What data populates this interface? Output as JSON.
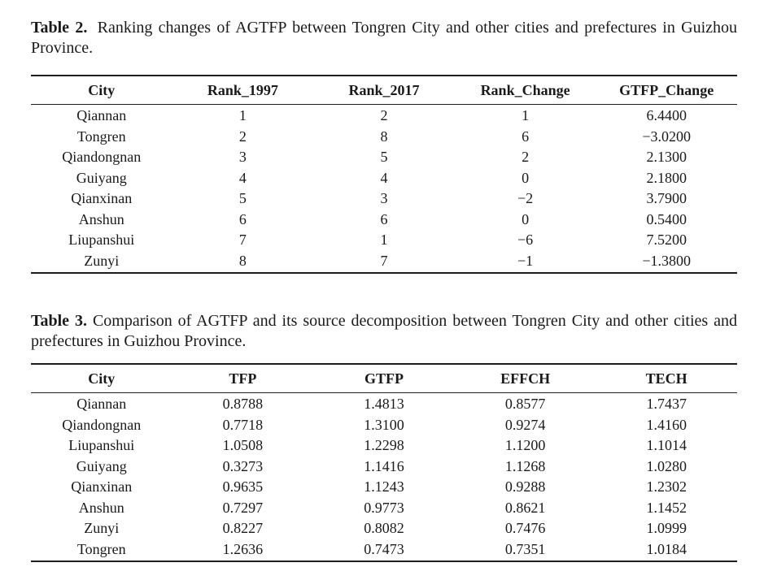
{
  "colors": {
    "text": "#1a1a1a",
    "rule": "#1c1c1c",
    "bg": "#ffffff"
  },
  "tables": [
    {
      "caption_label": "Table 2.",
      "caption_text": "Ranking changes of AGTFP between Tongren City and other cities and prefectures in Guizhou Province.",
      "columns": [
        "City",
        "Rank_1997",
        "Rank_2017",
        "Rank_Change",
        "GTFP_Change"
      ],
      "rows": [
        [
          "Qiannan",
          "1",
          "2",
          "1",
          "6.4400"
        ],
        [
          "Tongren",
          "2",
          "8",
          "6",
          "−3.0200"
        ],
        [
          "Qiandongnan",
          "3",
          "5",
          "2",
          "2.1300"
        ],
        [
          "Guiyang",
          "4",
          "4",
          "0",
          "2.1800"
        ],
        [
          "Qianxinan",
          "5",
          "3",
          "−2",
          "3.7900"
        ],
        [
          "Anshun",
          "6",
          "6",
          "0",
          "0.5400"
        ],
        [
          "Liupanshui",
          "7",
          "1",
          "−6",
          "7.5200"
        ],
        [
          "Zunyi",
          "8",
          "7",
          "−1",
          "−1.3800"
        ]
      ]
    },
    {
      "caption_label": "Table 3.",
      "caption_text": "Comparison of AGTFP and its source decomposition between Tongren City and other cities and prefectures in Guizhou Province.",
      "columns": [
        "City",
        "TFP",
        "GTFP",
        "EFFCH",
        "TECH"
      ],
      "rows": [
        [
          "Qiannan",
          "0.8788",
          "1.4813",
          "0.8577",
          "1.7437"
        ],
        [
          "Qiandongnan",
          "0.7718",
          "1.3100",
          "0.9274",
          "1.4160"
        ],
        [
          "Liupanshui",
          "1.0508",
          "1.2298",
          "1.1200",
          "1.1014"
        ],
        [
          "Guiyang",
          "0.3273",
          "1.1416",
          "1.1268",
          "1.0280"
        ],
        [
          "Qianxinan",
          "0.9635",
          "1.1243",
          "0.9288",
          "1.2302"
        ],
        [
          "Anshun",
          "0.7297",
          "0.9773",
          "0.8621",
          "1.1452"
        ],
        [
          "Zunyi",
          "0.8227",
          "0.8082",
          "0.7476",
          "1.0999"
        ],
        [
          "Tongren",
          "1.2636",
          "0.7473",
          "0.7351",
          "1.0184"
        ]
      ]
    }
  ]
}
